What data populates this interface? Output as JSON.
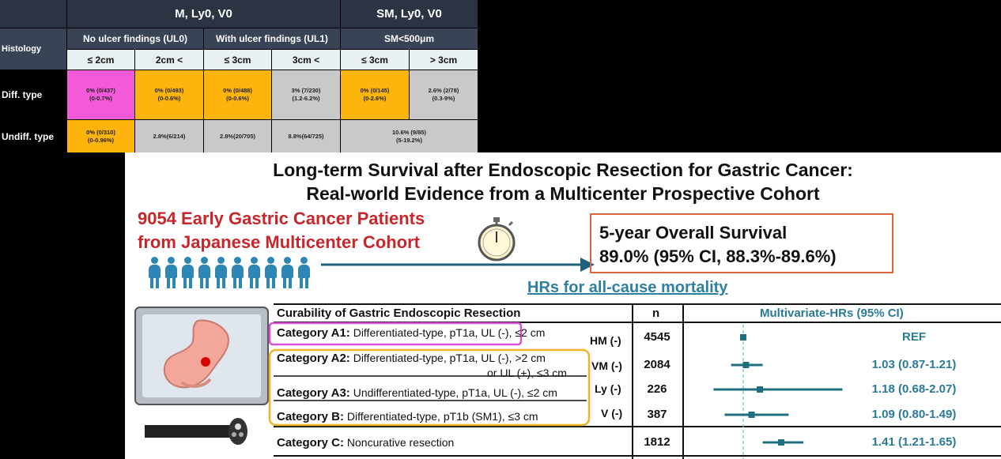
{
  "criteria_table": {
    "group_headers": [
      "M, Ly0, V0",
      "SM, Ly0, V0"
    ],
    "histology_label": "Histology",
    "sub_headers": [
      "No ulcer findings (UL0)",
      "With ulcer findings (UL1)",
      "SM<500μm"
    ],
    "size_headers": [
      "≤ 2cm",
      "2cm <",
      "≤ 3cm",
      "3cm <",
      "≤ 3cm",
      "> 3cm"
    ],
    "rows": [
      {
        "label": "Diff. type",
        "cells": [
          {
            "l1": "0% (0/437)",
            "l2": "(0-0.7%)",
            "color": "#f25ad7"
          },
          {
            "l1": "0% (0/493)",
            "l2": "(0-0.6%)",
            "color": "#fdb40d"
          },
          {
            "l1": "0% (0/488)",
            "l2": "(0-0.6%)",
            "color": "#fdb40d"
          },
          {
            "l1": "3% (7/230)",
            "l2": "(1.2-6.2%)",
            "color": "#c9c9c9"
          },
          {
            "l1": "0% (0/145)",
            "l2": "(0-2.6%)",
            "color": "#fdb40d"
          },
          {
            "l1": "2.6% (2/78)",
            "l2": "(0.3-9%)",
            "color": "#c9c9c9"
          }
        ]
      },
      {
        "label": "Undiff. type",
        "cells": [
          {
            "l1": "0% (0/310)",
            "l2": "(0-0.96%)",
            "color": "#fdb40d"
          },
          {
            "l1": "2.8%(6/214)",
            "l2": "",
            "color": "#c9c9c9"
          },
          {
            "l1": "2.8%(20/705)",
            "l2": "",
            "color": "#c9c9c9"
          },
          {
            "l1": "8.8%(64/725)",
            "l2": "",
            "color": "#c9c9c9"
          },
          {
            "l1": "10.6% (9/85)",
            "l2": "(5-19.2%)",
            "color": "#c9c9c9"
          }
        ]
      }
    ]
  },
  "poster": {
    "title_line1": "Long-term Survival after Endoscopic Resection for Gastric Cancer:",
    "title_line2": "Real-world Evidence from a Multicenter Prospective Cohort",
    "cohort_line1": "9054 Early Gastric Cancer Patients",
    "cohort_line2": "from Japanese Multicenter Cohort",
    "os_line1": "5-year Overall Survival",
    "os_line2": "89.0% (95% CI, 88.3%-89.6%)",
    "hr_title": "HRs for all-cause mortality",
    "icons": [
      "people-icon",
      "stopwatch-icon",
      "arrow-icon",
      "stomach-endoscopy-icon",
      "endoscope-icon"
    ],
    "colors": {
      "title_red": "#c8262b",
      "accent_teal": "#2a7a95",
      "os_border": "#e0633a",
      "cat_a1_border": "#d94fd6",
      "cat_group_border": "#f0b323"
    }
  },
  "forest": {
    "col_headers": {
      "curability": "Curability of Gastric Endoscopic Resection",
      "n": "n",
      "hr": "Multivariate-HRs (95% CI)"
    },
    "rows": [
      {
        "cat": "Category A1:",
        "desc": "Differentiated-type, pT1a, UL (-), ≤2 cm",
        "desc2": "",
        "margin": "HM (-)",
        "n": "4545",
        "hr_text": "REF",
        "hr": 1.0,
        "lo": 1.0,
        "hi": 1.0
      },
      {
        "cat": "Category A2:",
        "desc": "Differentiated-type, pT1a, UL (-), >2 cm",
        "desc2": "or UL (+), ≤3 cm",
        "margin": "VM (-)",
        "n": "2084",
        "hr_text": "1.03 (0.87-1.21)",
        "hr": 1.03,
        "lo": 0.87,
        "hi": 1.21
      },
      {
        "cat": "Category A3:",
        "desc": "Undifferentiated-type, pT1a, UL (-), ≤2 cm",
        "desc2": "",
        "margin": "Ly (-)",
        "n": "226",
        "hr_text": "1.18 (0.68-2.07)",
        "hr": 1.18,
        "lo": 0.68,
        "hi": 2.07
      },
      {
        "cat": "Category B:",
        "desc": "Differentiated-type, pT1b (SM1), ≤3 cm",
        "desc2": "",
        "margin": "V (-)",
        "n": "387",
        "hr_text": "1.09 (0.80-1.49)",
        "hr": 1.09,
        "lo": 0.8,
        "hi": 1.49
      },
      {
        "cat": "Category C:",
        "desc": "Noncurative resection",
        "desc2": "",
        "margin": "",
        "n": "1812",
        "hr_text": "1.41 (1.21-1.65)",
        "hr": 1.41,
        "lo": 1.21,
        "hi": 1.65
      }
    ]
  }
}
